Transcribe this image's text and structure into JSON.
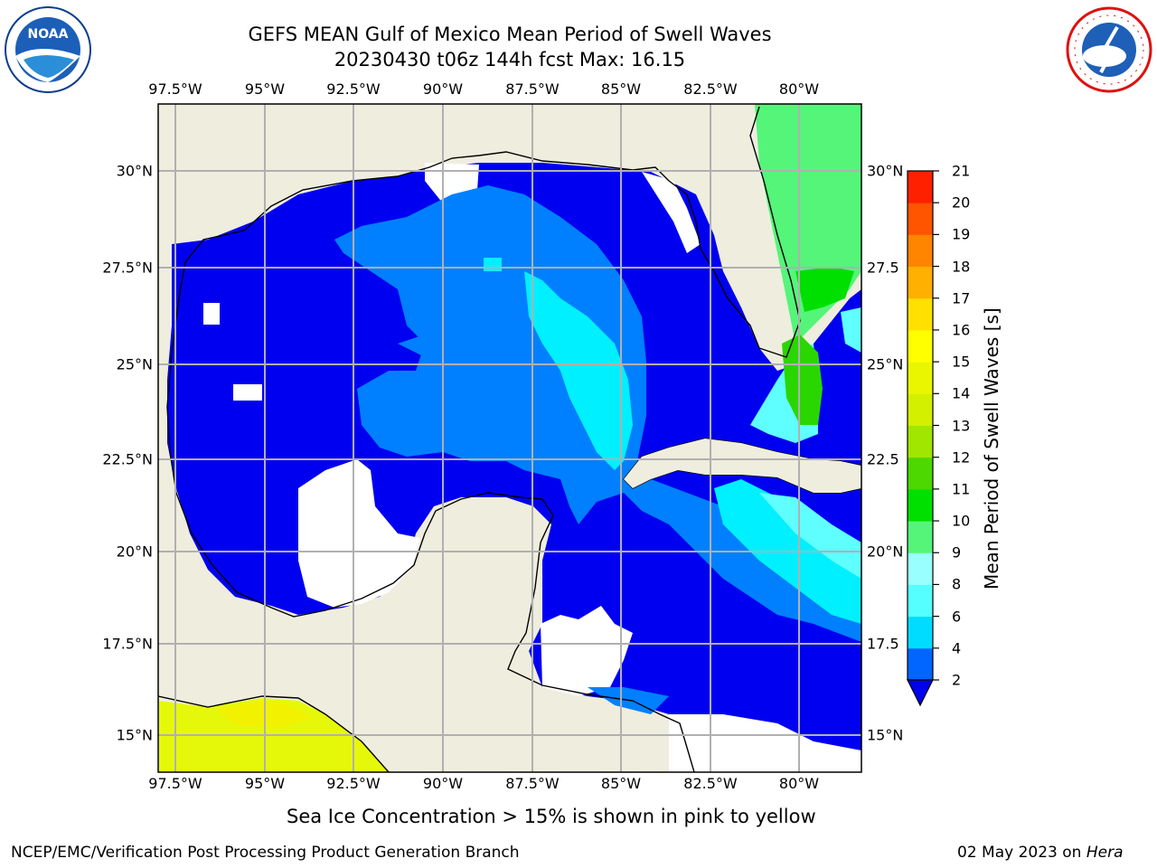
{
  "header": {
    "title_line1": "GEFS MEAN Gulf of Mexico Mean Period of Swell Waves",
    "title_line2": "20230430 t06z 144h fcst   Max: 16.15"
  },
  "logos": {
    "left": {
      "name": "noaa-logo",
      "text": "NOAA"
    },
    "right": {
      "name": "nws-logo",
      "text": "NATIONAL WEATHER SERVICE"
    }
  },
  "map": {
    "lon_labels": [
      "97.5°W",
      "95°W",
      "92.5°W",
      "90°W",
      "87.5°W",
      "85°W",
      "82.5°W",
      "80°W"
    ],
    "lat_labels_left": [
      "30°N",
      "27.5°N",
      "25°N",
      "22.5°N",
      "20°N",
      "17.5°N",
      "15°N"
    ],
    "lat_labels_right": [
      "30°N",
      "27.5",
      "25°N",
      "22.5",
      "20°N",
      "17.5",
      "15°N"
    ],
    "colors": {
      "land": "#efedde",
      "ocean_default": "#0000f0",
      "missing": "#ffffff",
      "grid": "#b0b0b0",
      "ice": "#e6f80a"
    }
  },
  "colorbar": {
    "label": "Mean Period of Swell Waves [s]",
    "ticks": [
      "2",
      "4",
      "6",
      "8",
      "9",
      "10",
      "11",
      "12",
      "13",
      "14",
      "15",
      "16",
      "17",
      "18",
      "19",
      "20",
      "21"
    ],
    "colors": [
      "#0066ff",
      "#00dcff",
      "#55ffff",
      "#9affff",
      "#55f57a",
      "#00e000",
      "#4cd800",
      "#a0e600",
      "#d2f000",
      "#eaf600",
      "#ffff00",
      "#ffe000",
      "#ffb000",
      "#ff8400",
      "#ff5400",
      "#ff2000"
    ]
  },
  "footer": {
    "ice_note": "Sea Ice Concentration > 15% is shown in pink to yellow",
    "org": "NCEP/EMC/Verification Post Processing Product Generation Branch",
    "date": "02 May 2023 on ",
    "machine": "Hera"
  }
}
